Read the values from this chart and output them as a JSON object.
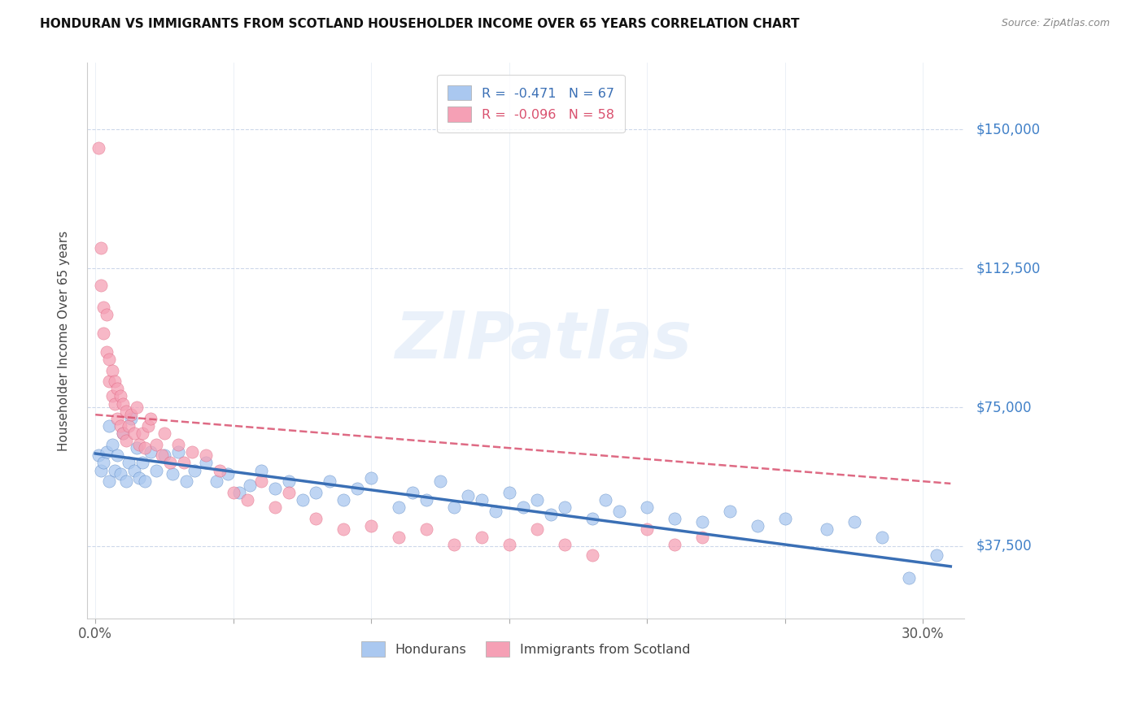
{
  "title": "HONDURAN VS IMMIGRANTS FROM SCOTLAND HOUSEHOLDER INCOME OVER 65 YEARS CORRELATION CHART",
  "source": "Source: ZipAtlas.com",
  "ylabel": "Householder Income Over 65 years",
  "xlabel_ticks_show": [
    "0.0%",
    "30.0%"
  ],
  "xlabel_ticks_pos": [
    0.0,
    0.3
  ],
  "ytick_labels": [
    "$37,500",
    "$75,000",
    "$112,500",
    "$150,000"
  ],
  "ytick_vals": [
    37500,
    75000,
    112500,
    150000
  ],
  "ylim": [
    18000,
    168000
  ],
  "xlim": [
    -0.003,
    0.315
  ],
  "legend_entry1": "R =  -0.471   N = 67",
  "legend_entry2": "R =  -0.096   N = 58",
  "honduran_color": "#aac8f0",
  "scotland_color": "#f5a0b5",
  "trend_honduran_color": "#3a6fb5",
  "trend_scotland_color": "#d9506e",
  "watermark": "ZIPatlas",
  "honduran_x": [
    0.001,
    0.002,
    0.003,
    0.004,
    0.005,
    0.005,
    0.006,
    0.007,
    0.008,
    0.009,
    0.01,
    0.011,
    0.012,
    0.013,
    0.014,
    0.015,
    0.016,
    0.017,
    0.018,
    0.02,
    0.022,
    0.025,
    0.028,
    0.03,
    0.033,
    0.036,
    0.04,
    0.044,
    0.048,
    0.052,
    0.056,
    0.06,
    0.065,
    0.07,
    0.075,
    0.08,
    0.085,
    0.09,
    0.095,
    0.1,
    0.11,
    0.115,
    0.12,
    0.125,
    0.13,
    0.135,
    0.14,
    0.145,
    0.15,
    0.155,
    0.16,
    0.165,
    0.17,
    0.18,
    0.185,
    0.19,
    0.2,
    0.21,
    0.22,
    0.23,
    0.24,
    0.25,
    0.265,
    0.275,
    0.285,
    0.295,
    0.305
  ],
  "honduran_y": [
    62000,
    58000,
    60000,
    63000,
    70000,
    55000,
    65000,
    58000,
    62000,
    57000,
    68000,
    55000,
    60000,
    72000,
    58000,
    64000,
    56000,
    60000,
    55000,
    63000,
    58000,
    62000,
    57000,
    63000,
    55000,
    58000,
    60000,
    55000,
    57000,
    52000,
    54000,
    58000,
    53000,
    55000,
    50000,
    52000,
    55000,
    50000,
    53000,
    56000,
    48000,
    52000,
    50000,
    55000,
    48000,
    51000,
    50000,
    47000,
    52000,
    48000,
    50000,
    46000,
    48000,
    45000,
    50000,
    47000,
    48000,
    45000,
    44000,
    47000,
    43000,
    45000,
    42000,
    44000,
    40000,
    29000,
    35000
  ],
  "scotland_x": [
    0.001,
    0.002,
    0.002,
    0.003,
    0.003,
    0.004,
    0.004,
    0.005,
    0.005,
    0.006,
    0.006,
    0.007,
    0.007,
    0.008,
    0.008,
    0.009,
    0.009,
    0.01,
    0.01,
    0.011,
    0.011,
    0.012,
    0.013,
    0.014,
    0.015,
    0.016,
    0.017,
    0.018,
    0.019,
    0.02,
    0.022,
    0.024,
    0.025,
    0.027,
    0.03,
    0.032,
    0.035,
    0.04,
    0.045,
    0.05,
    0.055,
    0.06,
    0.065,
    0.07,
    0.08,
    0.09,
    0.1,
    0.11,
    0.12,
    0.13,
    0.14,
    0.15,
    0.16,
    0.17,
    0.18,
    0.2,
    0.21,
    0.22
  ],
  "scotland_y": [
    145000,
    118000,
    108000,
    102000,
    95000,
    100000,
    90000,
    88000,
    82000,
    85000,
    78000,
    82000,
    76000,
    80000,
    72000,
    78000,
    70000,
    76000,
    68000,
    74000,
    66000,
    70000,
    73000,
    68000,
    75000,
    65000,
    68000,
    64000,
    70000,
    72000,
    65000,
    62000,
    68000,
    60000,
    65000,
    60000,
    63000,
    62000,
    58000,
    52000,
    50000,
    55000,
    48000,
    52000,
    45000,
    42000,
    43000,
    40000,
    42000,
    38000,
    40000,
    38000,
    42000,
    38000,
    35000,
    42000,
    38000,
    40000
  ]
}
